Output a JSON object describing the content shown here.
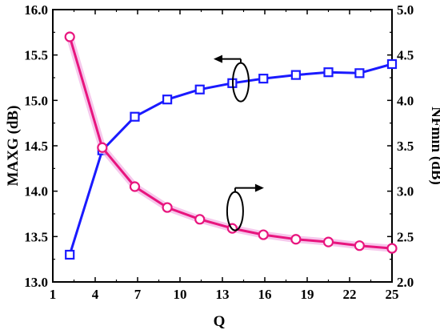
{
  "chart_data": {
    "type": "line",
    "xlabel": "Q",
    "ylabel_left": "MAXG (dB)",
    "ylabel_right": "NFmin (dB)",
    "xlim": [
      1,
      25
    ],
    "ylim_left": [
      13.0,
      16.0
    ],
    "ylim_right": [
      2.0,
      5.0
    ],
    "x_ticks": [
      "1",
      "4",
      "7",
      "10",
      "13",
      "16",
      "19",
      "22",
      "25"
    ],
    "y_left_ticks": [
      "13.0",
      "13.5",
      "14.0",
      "14.5",
      "15.0",
      "15.5",
      "16.0"
    ],
    "y_right_ticks": [
      "2.0",
      "2.5",
      "3.0",
      "3.5",
      "4.0",
      "4.5",
      "5.0"
    ],
    "grid": false,
    "series": [
      {
        "axis": "left",
        "color": "#1a1aff",
        "marker": "square",
        "x": [
          2.2,
          4.5,
          6.8,
          9.1,
          11.4,
          13.7,
          15.9,
          18.2,
          20.5,
          22.7,
          25.0
        ],
        "values": [
          13.3,
          14.45,
          14.82,
          15.01,
          15.12,
          15.19,
          15.24,
          15.28,
          15.31,
          15.3,
          15.4
        ]
      },
      {
        "axis": "right",
        "color": "#e8157e",
        "marker": "circle",
        "x": [
          2.2,
          4.5,
          6.8,
          9.1,
          11.4,
          13.7,
          15.9,
          18.2,
          20.5,
          22.7,
          25.0
        ],
        "values": [
          4.7,
          3.48,
          3.05,
          2.82,
          2.69,
          2.59,
          2.52,
          2.47,
          2.44,
          2.4,
          2.37
        ]
      }
    ],
    "annotations": [
      {
        "type": "ellipse-arrow",
        "target_axis": "left",
        "direction": "left",
        "x": 14.3,
        "y_left": 15.2
      },
      {
        "type": "ellipse-arrow",
        "target_axis": "right",
        "direction": "right",
        "x": 13.9,
        "y_right": 2.78
      }
    ]
  }
}
